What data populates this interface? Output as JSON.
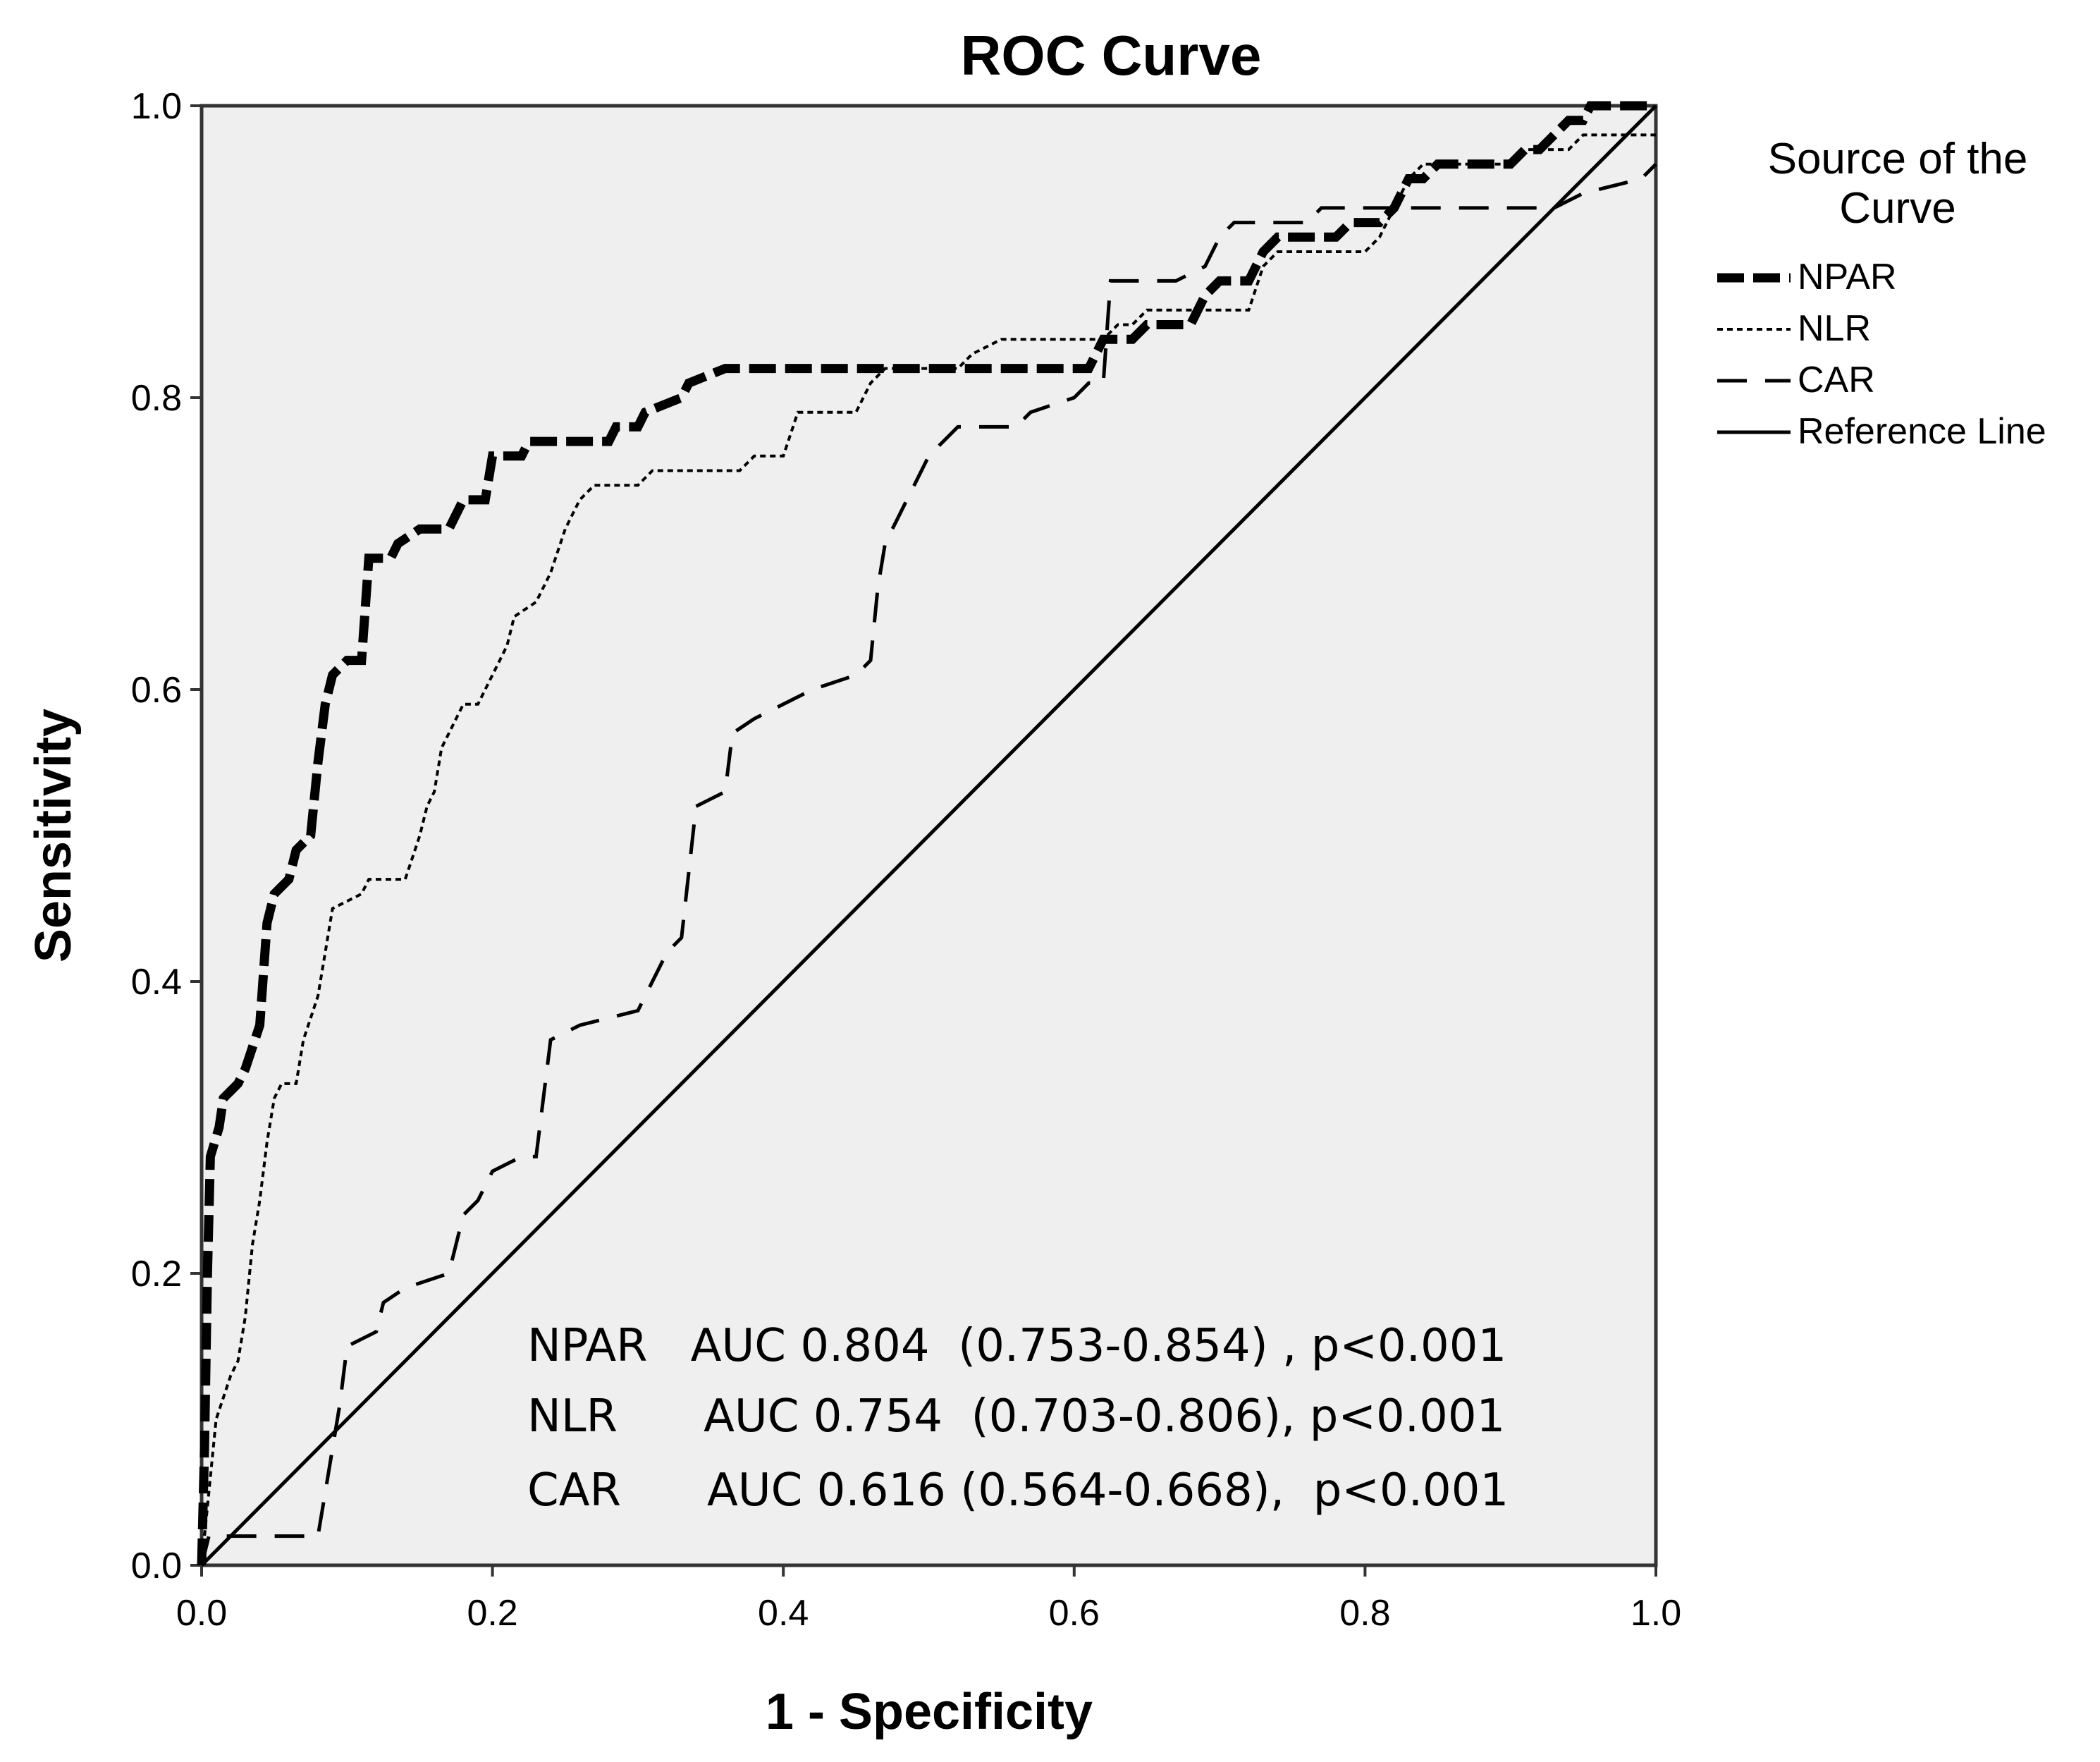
{
  "chart_data": {
    "type": "line",
    "title": "ROC Curve",
    "xlabel": "1 - Specificity",
    "ylabel": "Sensitivity",
    "xlim": [
      0.0,
      1.0
    ],
    "ylim": [
      0.0,
      1.0
    ],
    "x_ticks": [
      "0.0",
      "0.2",
      "0.4",
      "0.6",
      "0.8",
      "1.0"
    ],
    "y_ticks": [
      "0.0",
      "0.2",
      "0.4",
      "0.6",
      "0.8",
      "1.0"
    ],
    "legend_title": "Source of the Curve",
    "legend_title_lines": [
      "Source of the",
      "Curve"
    ],
    "legend_position": "right",
    "series": [
      {
        "name": "NPAR",
        "style": "thick-dash",
        "points": [
          [
            0.0,
            0.0
          ],
          [
            0.002,
            0.08
          ],
          [
            0.004,
            0.2
          ],
          [
            0.006,
            0.28
          ],
          [
            0.012,
            0.3
          ],
          [
            0.015,
            0.32
          ],
          [
            0.025,
            0.33
          ],
          [
            0.03,
            0.34
          ],
          [
            0.04,
            0.37
          ],
          [
            0.045,
            0.44
          ],
          [
            0.05,
            0.46
          ],
          [
            0.06,
            0.47
          ],
          [
            0.065,
            0.49
          ],
          [
            0.075,
            0.5
          ],
          [
            0.08,
            0.55
          ],
          [
            0.085,
            0.59
          ],
          [
            0.09,
            0.61
          ],
          [
            0.1,
            0.62
          ],
          [
            0.11,
            0.62
          ],
          [
            0.115,
            0.69
          ],
          [
            0.13,
            0.69
          ],
          [
            0.135,
            0.7
          ],
          [
            0.15,
            0.71
          ],
          [
            0.17,
            0.71
          ],
          [
            0.18,
            0.73
          ],
          [
            0.195,
            0.73
          ],
          [
            0.2,
            0.76
          ],
          [
            0.22,
            0.76
          ],
          [
            0.225,
            0.77
          ],
          [
            0.28,
            0.77
          ],
          [
            0.285,
            0.78
          ],
          [
            0.3,
            0.78
          ],
          [
            0.305,
            0.79
          ],
          [
            0.33,
            0.8
          ],
          [
            0.335,
            0.81
          ],
          [
            0.36,
            0.82
          ],
          [
            0.61,
            0.82
          ],
          [
            0.62,
            0.84
          ],
          [
            0.64,
            0.84
          ],
          [
            0.65,
            0.85
          ],
          [
            0.68,
            0.85
          ],
          [
            0.69,
            0.87
          ],
          [
            0.7,
            0.88
          ],
          [
            0.72,
            0.88
          ],
          [
            0.73,
            0.9
          ],
          [
            0.74,
            0.91
          ],
          [
            0.78,
            0.91
          ],
          [
            0.79,
            0.92
          ],
          [
            0.81,
            0.92
          ],
          [
            0.82,
            0.93
          ],
          [
            0.83,
            0.95
          ],
          [
            0.84,
            0.95
          ],
          [
            0.85,
            0.96
          ],
          [
            0.9,
            0.96
          ],
          [
            0.91,
            0.97
          ],
          [
            0.92,
            0.97
          ],
          [
            0.93,
            0.98
          ],
          [
            0.94,
            0.99
          ],
          [
            0.95,
            0.99
          ],
          [
            0.955,
            1.0
          ],
          [
            1.0,
            1.0
          ]
        ]
      },
      {
        "name": "NLR",
        "style": "dotted",
        "points": [
          [
            0.0,
            0.0
          ],
          [
            0.005,
            0.05
          ],
          [
            0.01,
            0.1
          ],
          [
            0.02,
            0.13
          ],
          [
            0.025,
            0.14
          ],
          [
            0.03,
            0.17
          ],
          [
            0.035,
            0.22
          ],
          [
            0.04,
            0.25
          ],
          [
            0.045,
            0.29
          ],
          [
            0.05,
            0.32
          ],
          [
            0.055,
            0.33
          ],
          [
            0.065,
            0.33
          ],
          [
            0.07,
            0.36
          ],
          [
            0.08,
            0.39
          ],
          [
            0.085,
            0.42
          ],
          [
            0.09,
            0.45
          ],
          [
            0.11,
            0.46
          ],
          [
            0.115,
            0.47
          ],
          [
            0.14,
            0.47
          ],
          [
            0.15,
            0.5
          ],
          [
            0.155,
            0.52
          ],
          [
            0.16,
            0.53
          ],
          [
            0.165,
            0.56
          ],
          [
            0.17,
            0.57
          ],
          [
            0.18,
            0.59
          ],
          [
            0.19,
            0.59
          ],
          [
            0.2,
            0.61
          ],
          [
            0.21,
            0.63
          ],
          [
            0.215,
            0.65
          ],
          [
            0.23,
            0.66
          ],
          [
            0.24,
            0.68
          ],
          [
            0.25,
            0.71
          ],
          [
            0.26,
            0.73
          ],
          [
            0.27,
            0.74
          ],
          [
            0.3,
            0.74
          ],
          [
            0.31,
            0.75
          ],
          [
            0.37,
            0.75
          ],
          [
            0.38,
            0.76
          ],
          [
            0.4,
            0.76
          ],
          [
            0.41,
            0.79
          ],
          [
            0.45,
            0.79
          ],
          [
            0.46,
            0.81
          ],
          [
            0.47,
            0.82
          ],
          [
            0.52,
            0.82
          ],
          [
            0.53,
            0.83
          ],
          [
            0.55,
            0.84
          ],
          [
            0.62,
            0.84
          ],
          [
            0.63,
            0.85
          ],
          [
            0.64,
            0.85
          ],
          [
            0.65,
            0.86
          ],
          [
            0.72,
            0.86
          ],
          [
            0.73,
            0.89
          ],
          [
            0.74,
            0.9
          ],
          [
            0.8,
            0.9
          ],
          [
            0.81,
            0.91
          ],
          [
            0.82,
            0.93
          ],
          [
            0.83,
            0.95
          ],
          [
            0.84,
            0.96
          ],
          [
            0.9,
            0.96
          ],
          [
            0.91,
            0.97
          ],
          [
            0.94,
            0.97
          ],
          [
            0.95,
            0.98
          ],
          [
            1.0,
            0.98
          ]
        ]
      },
      {
        "name": "CAR",
        "style": "long-dash",
        "points": [
          [
            0.0,
            0.0
          ],
          [
            0.005,
            0.02
          ],
          [
            0.08,
            0.02
          ],
          [
            0.085,
            0.05
          ],
          [
            0.09,
            0.08
          ],
          [
            0.095,
            0.11
          ],
          [
            0.1,
            0.15
          ],
          [
            0.12,
            0.16
          ],
          [
            0.125,
            0.18
          ],
          [
            0.14,
            0.19
          ],
          [
            0.17,
            0.2
          ],
          [
            0.175,
            0.22
          ],
          [
            0.18,
            0.24
          ],
          [
            0.19,
            0.25
          ],
          [
            0.2,
            0.27
          ],
          [
            0.22,
            0.28
          ],
          [
            0.23,
            0.28
          ],
          [
            0.24,
            0.36
          ],
          [
            0.26,
            0.37
          ],
          [
            0.3,
            0.38
          ],
          [
            0.31,
            0.4
          ],
          [
            0.32,
            0.42
          ],
          [
            0.33,
            0.43
          ],
          [
            0.34,
            0.52
          ],
          [
            0.36,
            0.53
          ],
          [
            0.365,
            0.57
          ],
          [
            0.38,
            0.58
          ],
          [
            0.42,
            0.6
          ],
          [
            0.45,
            0.61
          ],
          [
            0.46,
            0.62
          ],
          [
            0.465,
            0.67
          ],
          [
            0.47,
            0.7
          ],
          [
            0.48,
            0.72
          ],
          [
            0.49,
            0.74
          ],
          [
            0.5,
            0.76
          ],
          [
            0.51,
            0.77
          ],
          [
            0.52,
            0.78
          ],
          [
            0.56,
            0.78
          ],
          [
            0.57,
            0.79
          ],
          [
            0.6,
            0.8
          ],
          [
            0.61,
            0.81
          ],
          [
            0.62,
            0.81
          ],
          [
            0.625,
            0.88
          ],
          [
            0.67,
            0.88
          ],
          [
            0.69,
            0.89
          ],
          [
            0.7,
            0.91
          ],
          [
            0.71,
            0.92
          ],
          [
            0.76,
            0.92
          ],
          [
            0.77,
            0.93
          ],
          [
            0.9,
            0.93
          ],
          [
            0.93,
            0.93
          ],
          [
            0.95,
            0.94
          ],
          [
            0.99,
            0.95
          ],
          [
            1.0,
            0.96
          ]
        ]
      },
      {
        "name": "Reference Line",
        "style": "solid",
        "points": [
          [
            0.0,
            0.0
          ],
          [
            1.0,
            1.0
          ]
        ]
      }
    ],
    "annotations": [
      "NPAR   AUC 0.804  (0.753-0.854) , p<0.001",
      "NLR      AUC 0.754  (0.703-0.806), p<0.001",
      "CAR      AUC 0.616 (0.564-0.668),  p<0.001"
    ]
  }
}
